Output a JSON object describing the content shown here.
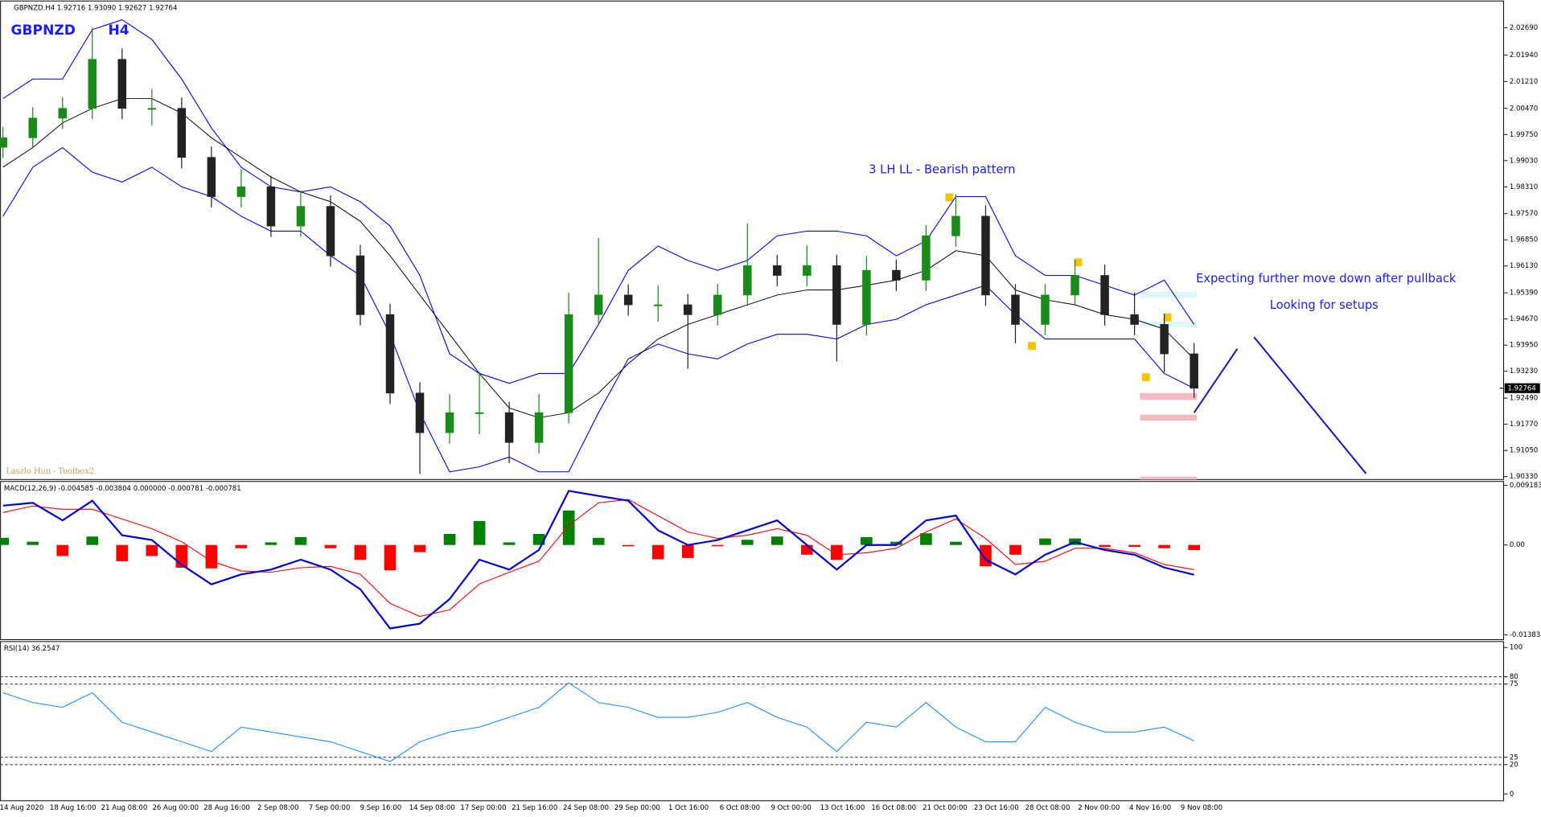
{
  "chart_data": [
    {
      "type": "candlestick",
      "header": "GBPNZD.H4  1.92716 1.93090 1.92627 1.92764",
      "symbol": "GBPNZD",
      "timeframe": "H4",
      "annotations": [
        "3 LH LL - Bearish pattern",
        "Expecting further move down after pullback",
        "Looking for setups"
      ],
      "watermark": "Laszlo Hun -  Toolbox2",
      "open": [
        1.994,
        1.9966,
        2.002,
        2.0047,
        2.0182,
        2.0047,
        2.0047,
        1.9912,
        1.9804,
        1.9831,
        1.9723,
        1.9777,
        1.9641,
        1.9479,
        1.9263,
        1.9154,
        1.9209,
        1.9209,
        1.9127,
        1.9209,
        1.9479,
        1.9533,
        1.9506,
        1.9506,
        1.9479,
        1.9533,
        1.9614,
        1.9587,
        1.9614,
        1.9452,
        1.9601,
        1.9574,
        1.9696,
        1.975,
        1.9533,
        1.9452,
        1.9533,
        1.9587,
        1.9479,
        1.9452,
        1.9371
      ],
      "high": [
        1.9996,
        2.005,
        2.0077,
        2.0269,
        2.0212,
        2.01,
        2.0077,
        1.9942,
        1.988,
        1.9861,
        1.982,
        1.9807,
        1.9671,
        1.9509,
        1.9293,
        1.926,
        1.932,
        1.9239,
        1.926,
        1.954,
        1.969,
        1.9563,
        1.956,
        1.9536,
        1.9563,
        1.973,
        1.9644,
        1.967,
        1.9644,
        1.964,
        1.9631,
        1.9726,
        1.981,
        1.978,
        1.9563,
        1.9563,
        1.963,
        1.9617,
        1.954,
        1.9482,
        1.9401
      ],
      "low": [
        1.991,
        1.9936,
        1.999,
        2.0017,
        2.0017,
        2.0,
        1.9882,
        1.9774,
        1.9774,
        1.9693,
        1.9693,
        1.9611,
        1.9449,
        1.9233,
        1.904,
        1.9124,
        1.915,
        1.907,
        1.9097,
        1.9179,
        1.9449,
        1.9476,
        1.946,
        1.933,
        1.9449,
        1.9503,
        1.9557,
        1.9557,
        1.935,
        1.9422,
        1.9544,
        1.9544,
        1.9666,
        1.9503,
        1.94,
        1.9422,
        1.9503,
        1.9449,
        1.9422,
        1.932,
        1.925
      ],
      "close": [
        1.9966,
        2.002,
        2.0047,
        2.0182,
        2.0047,
        2.0047,
        1.9912,
        1.9804,
        1.9831,
        1.9723,
        1.9777,
        1.9641,
        1.9479,
        1.9263,
        1.9154,
        1.9209,
        1.9209,
        1.9127,
        1.9209,
        1.9479,
        1.9533,
        1.9506,
        1.9506,
        1.9479,
        1.9533,
        1.9614,
        1.9587,
        1.9614,
        1.9452,
        1.9601,
        1.9574,
        1.9696,
        1.975,
        1.9533,
        1.9452,
        1.9533,
        1.9587,
        1.9479,
        1.9452,
        1.9371,
        1.92764
      ],
      "bb_upper": [
        2.0074,
        2.0128,
        2.0128,
        2.0264,
        2.0291,
        2.0237,
        2.0128,
        1.9993,
        1.9885,
        1.9831,
        1.9817,
        1.9831,
        1.979,
        1.9723,
        1.9587,
        1.9371,
        1.9317,
        1.929,
        1.9317,
        1.9317,
        1.9452,
        1.9601,
        1.9668,
        1.9628,
        1.9601,
        1.9628,
        1.9696,
        1.9709,
        1.9709,
        1.9696,
        1.9641,
        1.9682,
        1.9804,
        1.9804,
        1.9641,
        1.9587,
        1.9587,
        1.956,
        1.9533,
        1.9574,
        1.9452
      ],
      "bb_middle": [
        1.9885,
        1.9939,
        2.0007,
        2.0047,
        2.0074,
        2.0074,
        2.0034,
        1.9966,
        1.9912,
        1.9858,
        1.9817,
        1.979,
        1.9736,
        1.9641,
        1.9533,
        1.9425,
        1.9317,
        1.9222,
        1.9195,
        1.9209,
        1.9263,
        1.9344,
        1.9412,
        1.9452,
        1.9479,
        1.9506,
        1.9533,
        1.9547,
        1.9547,
        1.956,
        1.9574,
        1.9601,
        1.9655,
        1.9641,
        1.9547,
        1.952,
        1.9506,
        1.9479,
        1.9466,
        1.9439,
        1.9357
      ],
      "bb_lower": [
        1.975,
        1.9885,
        1.9939,
        1.9871,
        1.9844,
        1.9885,
        1.9831,
        1.9804,
        1.975,
        1.9709,
        1.9709,
        1.9641,
        1.9587,
        1.9425,
        1.9209,
        1.9046,
        1.906,
        1.9087,
        1.9046,
        1.9046,
        1.9209,
        1.9357,
        1.9398,
        1.9371,
        1.9357,
        1.9398,
        1.9425,
        1.9425,
        1.9412,
        1.9452,
        1.9466,
        1.9506,
        1.9533,
        1.956,
        1.9479,
        1.9412,
        1.9412,
        1.9412,
        1.9412,
        1.9317,
        1.9276
      ],
      "bull_color": "#1a8a1a",
      "bear_color": "#222222",
      "band_color": "#0000ff",
      "middle_color": "#000000",
      "ylim": [
        1.9025,
        2.034
      ],
      "yticks": [
        {
          "value": 2.0269,
          "label": "2.02690"
        },
        {
          "value": 2.0194,
          "label": "2.01940"
        },
        {
          "value": 2.0121,
          "label": "2.01210"
        },
        {
          "value": 2.0047,
          "label": "2.00470"
        },
        {
          "value": 1.9975,
          "label": "1.99750"
        },
        {
          "value": 1.9903,
          "label": "1.99030"
        },
        {
          "value": 1.9831,
          "label": "1.98310"
        },
        {
          "value": 1.9757,
          "label": "1.97570"
        },
        {
          "value": 1.9685,
          "label": "1.96850"
        },
        {
          "value": 1.9613,
          "label": "1.96130"
        },
        {
          "value": 1.9539,
          "label": "1.95390"
        },
        {
          "value": 1.9467,
          "label": "1.94670"
        },
        {
          "value": 1.9395,
          "label": "1.93950"
        },
        {
          "value": 1.9323,
          "label": "1.93230"
        },
        {
          "value": 1.9249,
          "label": "1.92490"
        },
        {
          "value": 1.9177,
          "label": "1.91770"
        },
        {
          "value": 1.9105,
          "label": "1.91050"
        },
        {
          "value": 1.9033,
          "label": "1.90330"
        }
      ]
    },
    {
      "type": "macd",
      "title": "MACD(12,26,9) -0.004585 -0.003804 0.000000 -0.000781 -0.000781",
      "macd": [
        0.00606,
        0.00651,
        0.00379,
        0.00682,
        0.00151,
        0.00076,
        -0.00303,
        -0.00606,
        -0.00454,
        -0.00379,
        -0.00227,
        -0.00379,
        -0.00682,
        -0.01287,
        -0.01212,
        -0.00833,
        -0.00227,
        -0.00379,
        -0.00076,
        0.00833,
        0.00757,
        0.00682,
        0.00227,
        0,
        0.00076,
        0.00227,
        0.00379,
        0,
        -0.00379,
        0,
        0,
        0.00379,
        0.00454,
        -0.00227,
        -0.00454,
        -0.00151,
        0.00045,
        -0.00076,
        -0.00151,
        -0.00348,
        -0.004585
      ],
      "signal": [
        0.005,
        0.006,
        0.0055,
        0.0055,
        0.004,
        0.0025,
        0.0005,
        -0.0025,
        -0.004,
        -0.0042,
        -0.0035,
        -0.0033,
        -0.0045,
        -0.009,
        -0.011,
        -0.01,
        -0.006,
        -0.0042,
        -0.0025,
        0.003,
        0.0065,
        0.007,
        0.0045,
        0.002,
        0.001,
        0.0015,
        0.0025,
        0.0015,
        -0.0015,
        -0.0012,
        -0.0005,
        0.002,
        0.004,
        0.001,
        -0.003,
        -0.0025,
        -0.0005,
        -0.0005,
        -0.0012,
        -0.003,
        -0.003804
      ],
      "histogram": [
        0.0011,
        0.0005,
        -0.0017,
        0.0013,
        -0.0025,
        -0.0017,
        -0.0035,
        -0.0036,
        -0.0005,
        0.0004,
        0.0012,
        -0.0005,
        -0.0023,
        -0.0039,
        -0.0011,
        0.0017,
        0.0037,
        0.0004,
        0.0017,
        0.0053,
        0.0011,
        -0.0002,
        -0.0022,
        -0.002,
        -0.0002,
        0.0008,
        0.0013,
        -0.0015,
        -0.0023,
        0.0012,
        0.0005,
        0.0018,
        0.0005,
        -0.0033,
        -0.0015,
        0.001,
        0.001,
        -0.0003,
        -0.0003,
        -0.0005,
        -0.000781
      ],
      "macd_color": "#0000cd",
      "signal_color": "#ff0000",
      "hist_up_color": "#008000",
      "hist_down_color": "#ff0000",
      "ylim": [
        -0.01459,
        0.00979
      ],
      "yticks": [
        0.009183,
        {
          "value": 0,
          "label": "0.00"
        },
        -0.013837
      ]
    },
    {
      "type": "line",
      "title": "RSI(14) 36.2547",
      "values": [
        69.1,
        62.4,
        59.1,
        69.1,
        49.0,
        42.3,
        35.6,
        28.9,
        45.6,
        42.3,
        38.9,
        35.6,
        28.9,
        22.1,
        35.6,
        42.3,
        45.6,
        52.3,
        59.1,
        75.8,
        62.4,
        59.1,
        52.3,
        52.3,
        55.7,
        62.4,
        52.3,
        45.6,
        28.9,
        49.0,
        45.6,
        62.4,
        45.6,
        35.6,
        35.6,
        59.1,
        49.0,
        42.3,
        42.3,
        45.6,
        36.2547
      ],
      "color": "#1e90ff",
      "levels": [
        80,
        75,
        25,
        20
      ],
      "ylim": [
        -4.7,
        104
      ],
      "yticks": [
        100,
        80,
        75,
        25,
        20,
        0
      ],
      "x_labels": [
        "14 Aug 2020",
        "18 Aug 16:00",
        "21 Aug 08:00",
        "26 Aug 00:00",
        "28 Aug 16:00",
        "2 Sep 08:00",
        "7 Sep 00:00",
        "9 Sep 16:00",
        "14 Sep 08:00",
        "17 Sep 00:00",
        "21 Sep 16:00",
        "24 Sep 08:00",
        "29 Sep 00:00",
        "1 Oct 16:00",
        "6 Oct 08:00",
        "9 Oct 00:00",
        "13 Oct 16:00",
        "16 Oct 08:00",
        "21 Oct 00:00",
        "23 Oct 16:00",
        "28 Oct 08:00",
        "2 Nov 00:00",
        "4 Nov 16:00",
        "9 Nov 08:00"
      ]
    }
  ]
}
